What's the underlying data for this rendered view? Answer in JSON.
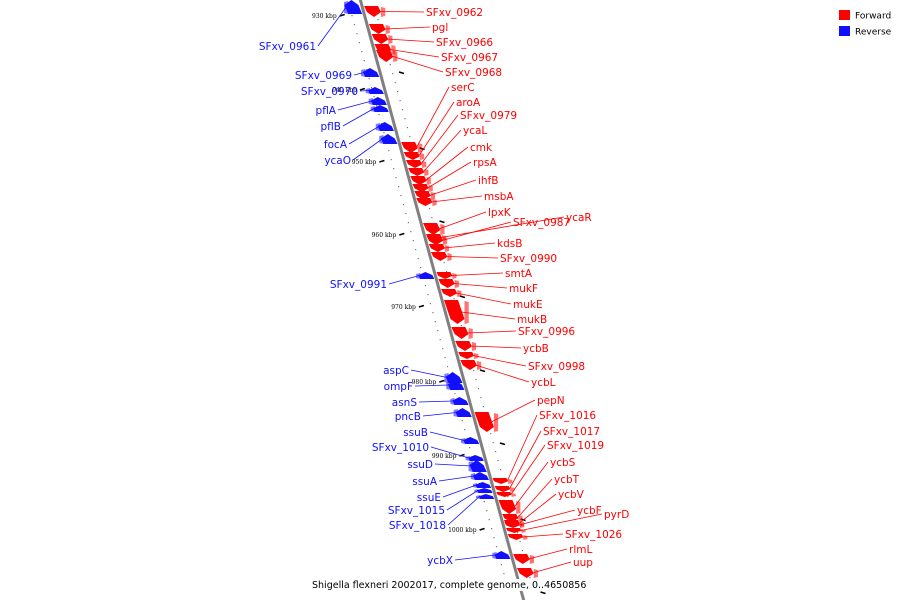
{
  "caption": "Shigella flexneri 2002017, complete genome, 0..4650856",
  "legend": {
    "forward": {
      "label": "Forward",
      "color": "#ff0000"
    },
    "reverse": {
      "label": "Reverse",
      "color": "#1010ff"
    }
  },
  "colors": {
    "backbone": "#808080",
    "forward_link": "#ff0000",
    "reverse_link": "#1010ff",
    "tick": "#000000"
  },
  "tick_labels": [
    "930 kbp",
    "940 kbp",
    "950 kbp",
    "960 kbp",
    "970 kbp",
    "980 kbp",
    "990 kbp",
    "1000 kbp"
  ],
  "forward_genes": [
    "SFxv_0962",
    "pgl",
    "SFxv_0966",
    "SFxv_0967",
    "SFxv_0968",
    "serC",
    "aroA",
    "SFxv_0979",
    "ycaL",
    "cmk",
    "rpsA",
    "ihfB",
    "msbA",
    "lpxK",
    "SFxv_0987",
    "ycaR",
    "kdsB",
    "SFxv_0990",
    "smtA",
    "mukF",
    "mukE",
    "mukB",
    "SFxv_0996",
    "ycbB",
    "SFxv_0998",
    "ycbL",
    "pepN",
    "SFxv_1016",
    "SFxv_1017",
    "SFxv_1019",
    "ycbS",
    "ycbT",
    "ycbV",
    "ycbF",
    "pyrD",
    "SFxv_1026",
    "rlmL",
    "uup"
  ],
  "reverse_genes": [
    "SFxv_0961",
    "SFxv_0969",
    "SFxv_0970",
    "pflA",
    "pflB",
    "focA",
    "ycaO",
    "SFxv_0991",
    "aspC",
    "ompF",
    "asnS",
    "pncB",
    "ssuB",
    "SFxv_1010",
    "ssuD",
    "ssuA",
    "ssuE",
    "SFxv_1015",
    "SFxv_1018",
    "ycbX"
  ]
}
